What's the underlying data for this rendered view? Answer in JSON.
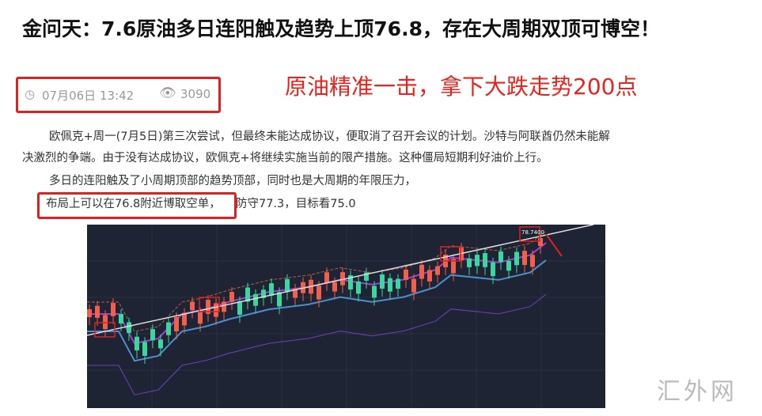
{
  "article": {
    "title": "金问天：7.6原油多日连阳触及趋势上顶76.8，存在大周期双顶可博空！",
    "date": "07月06日 13:42",
    "views": "3090",
    "headline": "原油精准一击，拿下大跌走势200点",
    "paragraphs": [
      "欧佩克+周一(7月5日)第三次尝试，但最终未能达成协议，便取消了召开会议的计划。沙特与阿联酋仍然未能解",
      "决激烈的争端。由于没有达成协议，欧佩克+将继续实施当前的限产措施。这种僵局短期利好油价上行。",
      "多日的连阳触及了小周期顶部的趋势顶部，同时也是大周期的年限压力，"
    ],
    "highlight": "布局上可以在76.8附近博取空单，",
    "rest": "防守77.3，目标看75.0"
  },
  "chart_image": {
    "price_label": "78.7400",
    "up_color": "#f0604a",
    "down_color": "#3dd6a0",
    "background": "#1e2433"
  },
  "watermark": "汇外网"
}
